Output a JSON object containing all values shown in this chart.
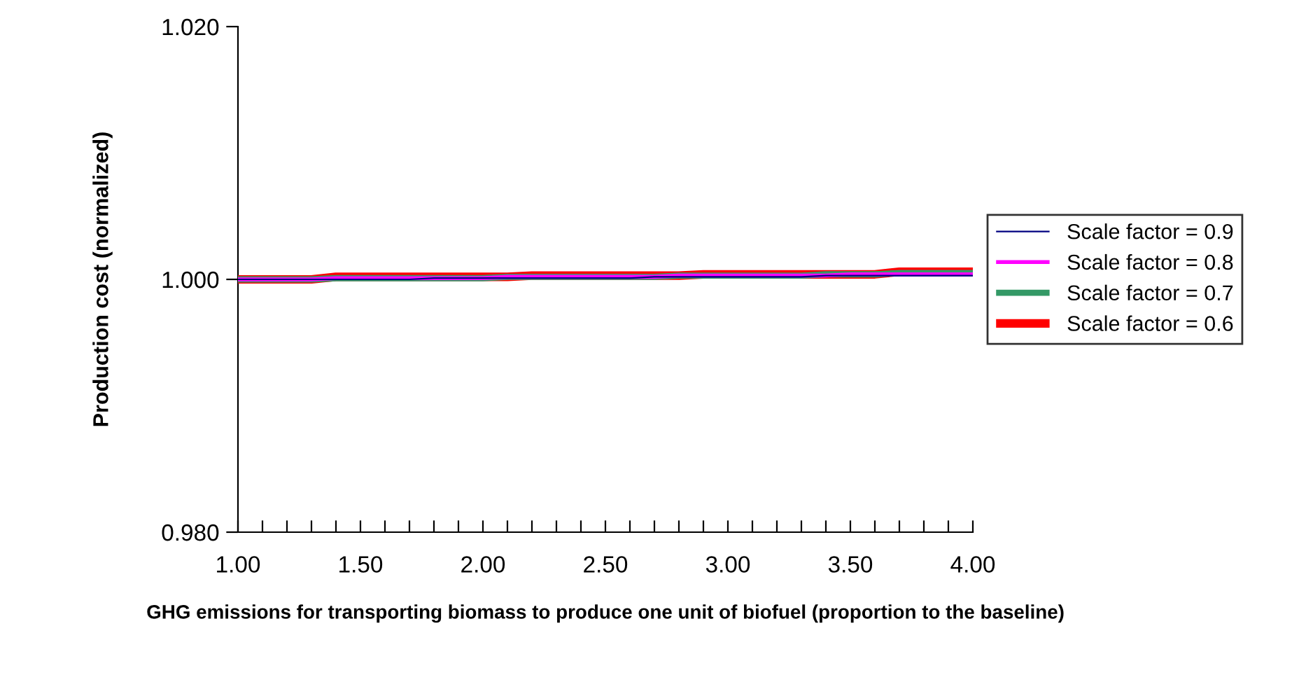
{
  "chart_data": {
    "type": "line",
    "xlabel": "GHG emissions for transporting biomass to produce one unit of biofuel (proportion to the baseline)",
    "ylabel": "Production cost (normalized)",
    "categories": [
      "1.00",
      null,
      null,
      null,
      null,
      "1.50",
      null,
      null,
      null,
      null,
      "2.00",
      null,
      null,
      null,
      null,
      "2.50",
      null,
      null,
      null,
      null,
      "3.00",
      null,
      null,
      null,
      null,
      "3.50",
      null,
      null,
      null,
      null,
      "4.00"
    ],
    "series": [
      {
        "name": "Scale factor = 0.9",
        "color": "#000080",
        "values": [
          1.0,
          1.0,
          1.0,
          1.0,
          1.0,
          1.0,
          1.0,
          1.0,
          1.0001,
          1.0001,
          1.0001,
          1.0001,
          1.0001,
          1.0001,
          1.0001,
          1.0001,
          1.0001,
          1.0002,
          1.0002,
          1.0002,
          1.0002,
          1.0002,
          1.0002,
          1.0002,
          1.0003,
          1.0003,
          1.0003,
          1.0003,
          1.0003,
          1.0003,
          1.0003
        ]
      },
      {
        "name": "Scale factor = 0.8",
        "color": "#ff00ff",
        "values": [
          1.0,
          1.0,
          1.0,
          1.0,
          1.0001,
          1.0001,
          1.0001,
          1.0001,
          1.0001,
          1.0001,
          1.0001,
          1.0002,
          1.0002,
          1.0002,
          1.0002,
          1.0002,
          1.0002,
          1.0002,
          1.0003,
          1.0003,
          1.0003,
          1.0003,
          1.0003,
          1.0003,
          1.0003,
          1.0004,
          1.0004,
          1.0004,
          1.0004,
          1.0004,
          1.0004
        ]
      },
      {
        "name": "Scale factor = 0.7",
        "color": "#339966",
        "values": [
          1.0,
          1.0,
          1.0,
          1.0,
          1.0001,
          1.0001,
          1.0001,
          1.0001,
          1.0001,
          1.0001,
          1.0001,
          1.0002,
          1.0002,
          1.0002,
          1.0002,
          1.0002,
          1.0002,
          1.0002,
          1.0003,
          1.0003,
          1.0003,
          1.0003,
          1.0003,
          1.0003,
          1.0004,
          1.0004,
          1.0004,
          1.0005,
          1.0005,
          1.0005,
          1.0005
        ]
      },
      {
        "name": "Scale factor = 0.6",
        "color": "#ff0000",
        "values": [
          1.0,
          1.0,
          1.0,
          1.0,
          1.0002,
          1.0002,
          1.0002,
          1.0002,
          1.0002,
          1.0002,
          1.0002,
          1.0002,
          1.0003,
          1.0003,
          1.0003,
          1.0003,
          1.0003,
          1.0003,
          1.0003,
          1.0004,
          1.0004,
          1.0004,
          1.0004,
          1.0004,
          1.0004,
          1.0004,
          1.0004,
          1.0006,
          1.0006,
          1.0006,
          1.0006
        ]
      }
    ],
    "ylim": [
      0.98,
      1.02
    ],
    "yticks": [
      {
        "value": 0.98,
        "label": "0.980"
      },
      {
        "value": 1.0,
        "label": "1.000"
      },
      {
        "value": 1.02,
        "label": "1.020"
      }
    ],
    "legend": "right",
    "grid": false
  }
}
